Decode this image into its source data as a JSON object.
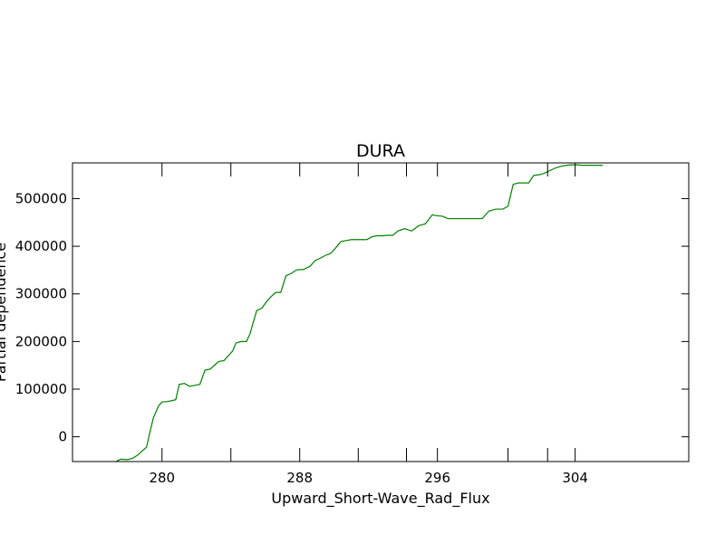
{
  "chart_data": {
    "type": "line",
    "title": "DURA",
    "xlabel": "Upward_Short-Wave_Rad_Flux",
    "ylabel": "Partial dependence",
    "xlim": [
      274.8,
      310.6
    ],
    "ylim": [
      -52000,
      575000
    ],
    "xticks_labeled": [
      280,
      288,
      296,
      304
    ],
    "xticks_minor": [
      284,
      291.4,
      294.2,
      300.1,
      302.4
    ],
    "yticks": [
      0,
      100000,
      200000,
      300000,
      400000,
      500000
    ],
    "series": [
      {
        "color": "#008000",
        "x": [
          276.7,
          277.2,
          277.6,
          278.0,
          278.3,
          278.6,
          278.9,
          279.1,
          279.3,
          279.5,
          279.8,
          280.0,
          280.3,
          280.6,
          280.8,
          281.0,
          281.3,
          281.6,
          281.9,
          282.2,
          282.5,
          282.8,
          283.1,
          283.3,
          283.6,
          283.9,
          284.1,
          284.3,
          284.6,
          284.9,
          285.1,
          285.5,
          285.8,
          286.1,
          286.3,
          286.6,
          286.9,
          287.2,
          287.5,
          287.8,
          288.0,
          288.2,
          288.6,
          288.9,
          289.2,
          289.5,
          289.8,
          290.1,
          290.4,
          290.7,
          291.0,
          291.3,
          291.6,
          291.9,
          292.2,
          292.5,
          292.8,
          293.1,
          293.4,
          293.7,
          294.1,
          294.5,
          294.9,
          295.3,
          295.7,
          296.0,
          296.3,
          296.6,
          297.0,
          297.4,
          297.8,
          298.2,
          298.6,
          299.0,
          299.4,
          299.8,
          300.1,
          300.4,
          300.7,
          301.0,
          301.3,
          301.6,
          301.9,
          302.2,
          302.6,
          302.9,
          303.2,
          303.5,
          303.8,
          304.1,
          304.4,
          304.8,
          305.2,
          305.6
        ],
        "y": [
          -55000,
          -54000,
          -47000,
          -48000,
          -45000,
          -38000,
          -28000,
          -22000,
          10000,
          40000,
          65000,
          73000,
          74000,
          76000,
          78000,
          110000,
          112000,
          106000,
          108000,
          110000,
          140000,
          142000,
          152000,
          158000,
          160000,
          172000,
          180000,
          197000,
          200000,
          200000,
          215000,
          265000,
          270000,
          285000,
          293000,
          303000,
          303000,
          338000,
          343000,
          350000,
          351000,
          351000,
          358000,
          370000,
          375000,
          381000,
          385000,
          397000,
          410000,
          412000,
          414000,
          414000,
          414000,
          414000,
          420000,
          422000,
          422000,
          423000,
          423000,
          432000,
          437000,
          432000,
          443000,
          447000,
          466000,
          464000,
          463000,
          458000,
          458000,
          458000,
          458000,
          458000,
          458000,
          474000,
          478000,
          478000,
          484000,
          530000,
          533000,
          533000,
          533000,
          549000,
          550000,
          553000,
          560000,
          565000,
          568000,
          570000,
          571000,
          571000,
          570000,
          570000,
          570000,
          570000
        ]
      }
    ]
  }
}
